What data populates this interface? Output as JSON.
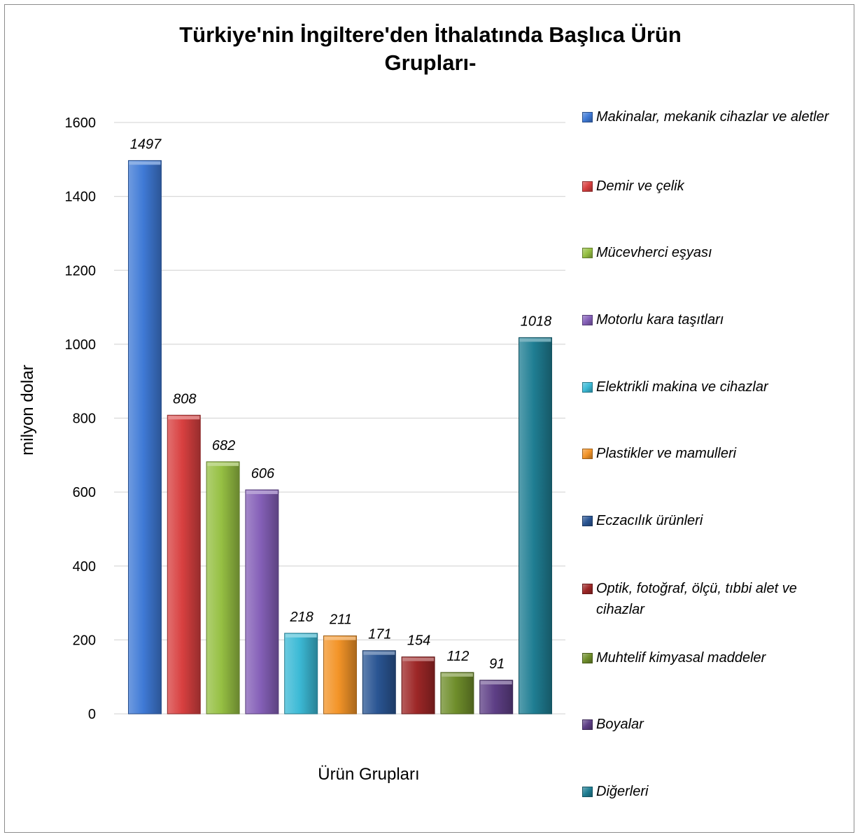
{
  "chart_data": {
    "type": "bar",
    "title_lines": [
      "Türkiye'nin İngiltere'den İthalatında Başlıca Ürün",
      "Grupları-"
    ],
    "xlabel": "Ürün Grupları",
    "ylabel": "milyon dolar",
    "ylim": [
      0,
      1600
    ],
    "yticks": [
      "0",
      "200",
      "400",
      "600",
      "800",
      "1000",
      "1200",
      "1400",
      "1600"
    ],
    "grid": true,
    "legend_position": "right",
    "series": [
      {
        "name": "Makinalar, mekanik cihazlar ve aletler",
        "value": 1497,
        "label": "1497",
        "color": "#3f7ad6"
      },
      {
        "name": "Demir ve çelik",
        "value": 808,
        "label": "808",
        "color": "#d84040"
      },
      {
        "name": "Mücevherci eşyası",
        "value": 682,
        "label": "682",
        "color": "#96c043"
      },
      {
        "name": "Motorlu kara taşıtları",
        "value": 606,
        "label": "606",
        "color": "#8560b8"
      },
      {
        "name": "Elektrikli makina ve cihazlar",
        "value": 218,
        "label": "218",
        "color": "#3cbad6"
      },
      {
        "name": "Plastikler ve mamulleri",
        "value": 211,
        "label": "211",
        "color": "#f39428"
      },
      {
        "name": "Eczacılık ürünleri",
        "value": 171,
        "label": "171",
        "color": "#2a5593"
      },
      {
        "name": "Optik, fotoğraf, ölçü, tıbbi alet ve cihazlar",
        "value": 154,
        "label": "154",
        "color": "#9d2727"
      },
      {
        "name": "Muhtelif kimyasal maddeler",
        "value": 112,
        "label": "112",
        "color": "#6f8e2b"
      },
      {
        "name": "Boyalar",
        "value": 91,
        "label": "91",
        "color": "#5e3f86"
      },
      {
        "name": "Diğerleri",
        "value": 1018,
        "label": "1018",
        "color": "#1f7e93"
      }
    ]
  }
}
